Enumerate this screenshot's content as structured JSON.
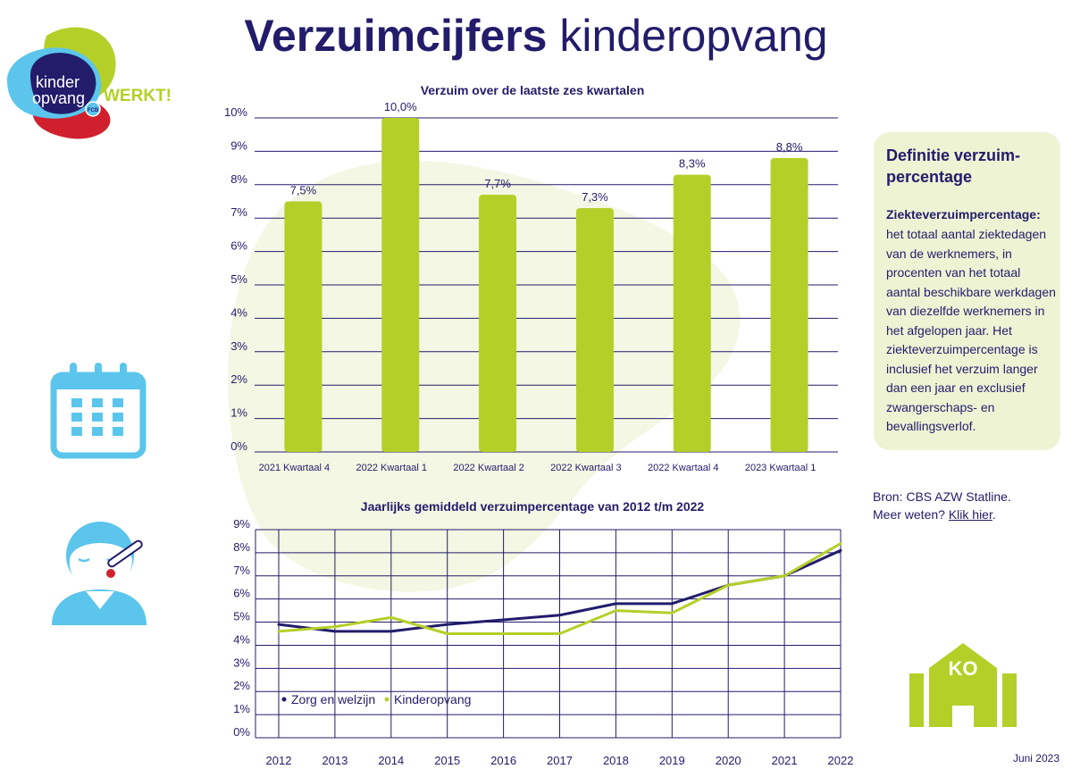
{
  "title_bold": "Verzuimcijfers",
  "title_light": "kinderopvang",
  "logo": {
    "line1": "kinder",
    "line2": "opvang",
    "tag": "WERKT!",
    "badge": "FCB"
  },
  "definition": {
    "title": "Definitie verzuim-percentage",
    "term": "Ziekteverzuimpercentage:",
    "body": "het totaal aantal ziektedagen van de werknemers, in procenten van het totaal aantal beschikbare werkdagen van diezelfde werknemers in het afgelopen jaar. Het ziekteverzuimpercentage is inclusief het verzuim langer dan een jaar en exclusief zwangerschaps- en bevallingsverlof."
  },
  "source": {
    "line1": "Bron: CBS AZW Statline.",
    "more_prefix": "Meer weten?",
    "link_label": "Klik hier"
  },
  "date": "Juni 2023",
  "icons": {
    "calendar": "calendar-icon",
    "sick_person": "sick-person-thermometer-icon",
    "building": "childcare-building-icon",
    "building_label": "KO"
  },
  "colors": {
    "navy": "#221c6b",
    "green": "#b5cf29",
    "blue": "#5bc5ec",
    "red": "#d0202e",
    "blob": "#f3f7e3"
  },
  "chart_data": [
    {
      "type": "bar",
      "title": "Verzuim over de laatste zes kwartalen",
      "categories": [
        "2021  Kwartaal 4",
        "2022  Kwartaal 1",
        "2022  Kwartaal 2",
        "2022  Kwartaal 3",
        "2022  Kwartaal 4",
        "2023  Kwartaal 1"
      ],
      "values": [
        7.5,
        10.0,
        7.7,
        7.3,
        8.3,
        8.8
      ],
      "data_labels": [
        "7,5%",
        "10,0%",
        "7,7%",
        "7,3%",
        "8,3%",
        "8,8%"
      ],
      "ylim": [
        0,
        10
      ],
      "yticks": [
        "0%",
        "1%",
        "2%",
        "3%",
        "4%",
        "5%",
        "6%",
        "7%",
        "8%",
        "9%",
        "10%"
      ],
      "grid": "horizontal",
      "color": "#b5cf29"
    },
    {
      "type": "line",
      "title": "Jaarlijks gemiddeld verzuimpercentage van 2012 t/m 2022",
      "x": [
        "2012",
        "2013",
        "2014",
        "2015",
        "2016",
        "2017",
        "2018",
        "2019",
        "2020",
        "2021",
        "2022"
      ],
      "ylim": [
        0,
        9
      ],
      "yticks": [
        "0%",
        "1%",
        "2%",
        "3%",
        "4%",
        "5%",
        "6%",
        "7%",
        "8%",
        "9%"
      ],
      "grid": "both",
      "legend_position": "bottom-left",
      "series": [
        {
          "name": "Zorg en welzijn",
          "color": "#221c6b",
          "values": [
            4.9,
            4.6,
            4.6,
            4.9,
            5.1,
            5.3,
            5.8,
            5.8,
            6.6,
            7.0,
            8.1
          ]
        },
        {
          "name": "Kinderopvang",
          "color": "#b5cf29",
          "values": [
            4.6,
            4.8,
            5.2,
            4.5,
            4.5,
            4.5,
            5.5,
            5.4,
            6.6,
            7.0,
            8.4
          ]
        }
      ]
    }
  ]
}
